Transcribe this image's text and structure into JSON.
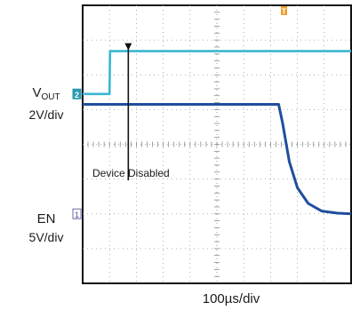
{
  "chart_data": {
    "type": "line",
    "title": "",
    "time_scale": "100µs/div",
    "x_divisions": 10,
    "y_divisions": 8,
    "trigger_marker": "T",
    "channels": [
      {
        "id": "1",
        "name_main": "V",
        "name_sub": "OUT",
        "scale": "2V/div",
        "color": "#1f4e9c",
        "ground_div": 2.0,
        "points_x_div": [
          0,
          7.3,
          7.45,
          7.7,
          8.0,
          8.4,
          8.9,
          9.5,
          10
        ],
        "points_y_div": [
          3.15,
          3.15,
          2.6,
          1.5,
          0.75,
          0.3,
          0.08,
          0.02,
          0.0
        ]
      },
      {
        "id": "2",
        "name": "EN",
        "scale": "5V/div",
        "color": "#3bb6d1",
        "ground_div": -1.45,
        "points_x_div": [
          0,
          1.0,
          1.02,
          10
        ],
        "points_y_div": [
          0.0,
          0.0,
          1.23,
          1.23
        ]
      }
    ],
    "annotations": [
      {
        "text": "Device Disabled",
        "x_div": 1.7
      }
    ]
  }
}
